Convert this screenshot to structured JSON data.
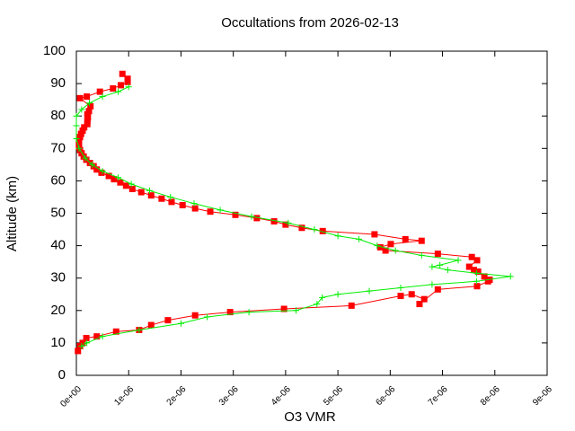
{
  "chart_data": {
    "type": "line",
    "title": "Occultations from 2026-02-13",
    "x_label": "O3 VMR",
    "y_label": "Altitude (km)",
    "xlim": [
      0,
      9e-06
    ],
    "ylim": [
      0,
      100
    ],
    "xticks": [
      {
        "value": 0,
        "label": "0e+00"
      },
      {
        "value": 1e-06,
        "label": "1e-06"
      },
      {
        "value": 2e-06,
        "label": "2e-06"
      },
      {
        "value": 3e-06,
        "label": "3e-06"
      },
      {
        "value": 4e-06,
        "label": "4e-06"
      },
      {
        "value": 5e-06,
        "label": "5e-06"
      },
      {
        "value": 6e-06,
        "label": "6e-06"
      },
      {
        "value": 7e-06,
        "label": "7e-06"
      },
      {
        "value": 8e-06,
        "label": "8e-06"
      },
      {
        "value": 9e-06,
        "label": "9e-06"
      }
    ],
    "yticks": [
      0,
      10,
      20,
      30,
      40,
      50,
      60,
      70,
      80,
      90,
      100
    ],
    "series": [
      {
        "color": "#ff0000",
        "marker": "square",
        "x": [
          3e-08,
          7e-08,
          1.2e-07,
          1.9e-07,
          3.9e-07,
          7.6e-07,
          1.2e-06,
          1.43e-06,
          1.75e-06,
          2.27e-06,
          2.94e-06,
          3.97e-06,
          5.26e-06,
          6.2e-06,
          6.41e-06,
          6.65e-06,
          6.56e-06,
          6.91e-06,
          7.66e-06,
          7.87e-06,
          7.9e-06,
          7.8e-06,
          7.68e-06,
          7.6e-06,
          7.51e-06,
          7.66e-06,
          7.56e-06,
          6.91e-06,
          5.91e-06,
          5.81e-06,
          6.01e-06,
          6.6e-06,
          6.29e-06,
          5.7e-06,
          4.71e-06,
          4.31e-06,
          4e-06,
          3.78e-06,
          3.45e-06,
          3.04e-06,
          2.56e-06,
          2.27e-06,
          2.03e-06,
          1.82e-06,
          1.63e-06,
          1.43e-06,
          1.24e-06,
          1.07e-06,
          9.5e-07,
          8.4e-07,
          7.2e-07,
          6.2e-07,
          4.8e-07,
          3.9e-07,
          3.3e-07,
          2.6e-07,
          1.9e-07,
          1.4e-07,
          1e-07,
          7e-08,
          5e-08,
          5e-08,
          5e-08,
          7e-08,
          9e-08,
          1.2e-07,
          1.5e-07,
          2.1e-07,
          2.1e-07,
          2.2e-07,
          2.1e-07,
          2.4e-07,
          2.7e-07,
          7e-08,
          2e-07,
          4.5e-07,
          7e-07,
          8.5e-07,
          9.8e-07,
          9.8e-07,
          8.8e-07
        ],
        "values": [
          7.5,
          9,
          10,
          11.5,
          12,
          13.5,
          14,
          15.5,
          17,
          18.5,
          19.5,
          20.5,
          21.5,
          24.5,
          25,
          23.5,
          22,
          26.5,
          27.5,
          29,
          29.5,
          30.5,
          32,
          32.5,
          33.5,
          35.5,
          36.5,
          37.5,
          38.5,
          39.5,
          40.5,
          41.5,
          42,
          43.5,
          44.5,
          45.5,
          46.5,
          47.5,
          48.5,
          49.5,
          50.5,
          51.5,
          52.5,
          53.5,
          54.5,
          55.5,
          56.5,
          57.5,
          58.5,
          59.5,
          60.5,
          61.5,
          62.5,
          63.5,
          64.5,
          65.5,
          66.5,
          67.5,
          68.5,
          69.5,
          70.5,
          71.5,
          72.5,
          73.5,
          74.5,
          75.5,
          76.5,
          77.5,
          78.5,
          79.5,
          80.5,
          81.5,
          83,
          85.5,
          86,
          87.5,
          88.5,
          89.5,
          90.5,
          91.5,
          93
        ]
      },
      {
        "color": "#00ee00",
        "marker": "plus",
        "x": [
          1e-07,
          2e-07,
          5e-07,
          1.2e-06,
          2e-06,
          2.5e-06,
          3.3e-06,
          4.2e-06,
          4.6e-06,
          4.7e-06,
          5e-06,
          5.6e-06,
          6.2e-06,
          6.8e-06,
          7.65e-06,
          8.3e-06,
          7.65e-06,
          7.1e-06,
          6.8e-06,
          6.95e-06,
          7.3e-06,
          6.6e-06,
          6.1e-06,
          5.75e-06,
          5.4e-06,
          5e-06,
          4.55e-06,
          4.05e-06,
          3.35e-06,
          2.75e-06,
          2.25e-06,
          1.8e-06,
          1.4e-06,
          1.05e-06,
          8e-07,
          5e-07,
          3e-07,
          1.7e-07,
          5e-08,
          0.0,
          0.0,
          0.0,
          1e-07,
          2.5e-07,
          5e-07,
          8e-07,
          1e-06
        ],
        "values": [
          9,
          10,
          12,
          14,
          16,
          18,
          19.5,
          20,
          22,
          24,
          25,
          26,
          27,
          28,
          29,
          30.5,
          31.5,
          32.5,
          33.5,
          34,
          35.5,
          37,
          38.5,
          40,
          42,
          43,
          45,
          47,
          49,
          51,
          53,
          55,
          57,
          59,
          61,
          63,
          65,
          67,
          70,
          73,
          77,
          80,
          82,
          84,
          86,
          87.5,
          89
        ]
      }
    ]
  }
}
